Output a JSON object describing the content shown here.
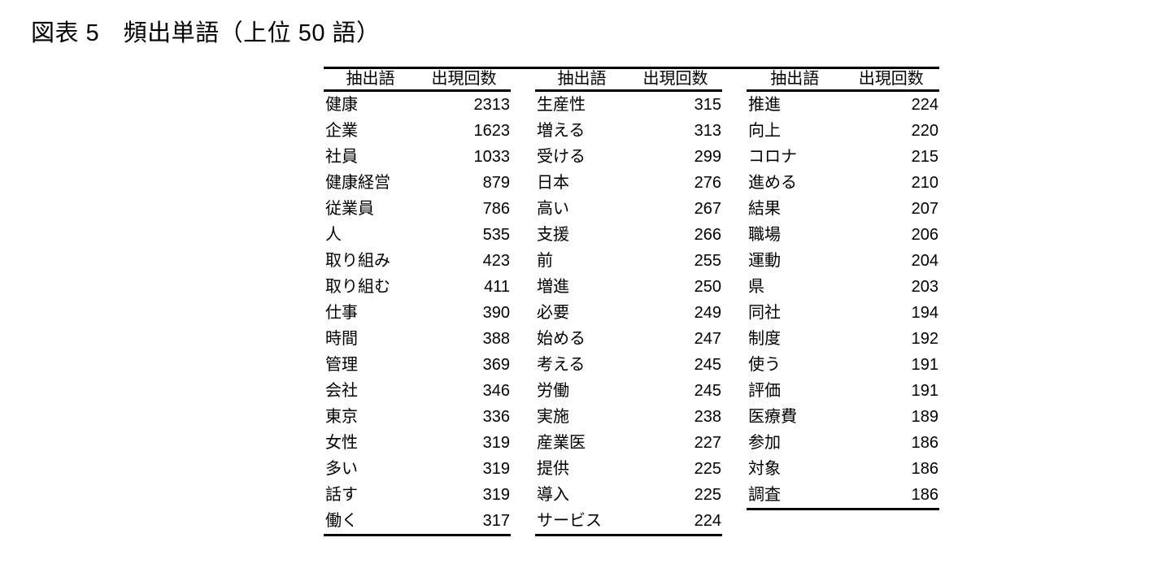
{
  "title": "図表 5　頻出単語（上位 50 語）",
  "colors": {
    "text": "#000000",
    "background": "#ffffff",
    "rule": "#000000"
  },
  "tables": [
    {
      "headers": [
        "抽出語",
        "出現回数"
      ],
      "rows": [
        [
          "健康",
          "2313"
        ],
        [
          "企業",
          "1623"
        ],
        [
          "社員",
          "1033"
        ],
        [
          "健康経営",
          "879"
        ],
        [
          "従業員",
          "786"
        ],
        [
          "人",
          "535"
        ],
        [
          "取り組み",
          "423"
        ],
        [
          "取り組む",
          "411"
        ],
        [
          "仕事",
          "390"
        ],
        [
          "時間",
          "388"
        ],
        [
          "管理",
          "369"
        ],
        [
          "会社",
          "346"
        ],
        [
          "東京",
          "336"
        ],
        [
          "女性",
          "319"
        ],
        [
          "多い",
          "319"
        ],
        [
          "話す",
          "319"
        ],
        [
          "働く",
          "317"
        ]
      ]
    },
    {
      "headers": [
        "抽出語",
        "出現回数"
      ],
      "rows": [
        [
          "生産性",
          "315"
        ],
        [
          "増える",
          "313"
        ],
        [
          "受ける",
          "299"
        ],
        [
          "日本",
          "276"
        ],
        [
          "高い",
          "267"
        ],
        [
          "支援",
          "266"
        ],
        [
          "前",
          "255"
        ],
        [
          "増進",
          "250"
        ],
        [
          "必要",
          "249"
        ],
        [
          "始める",
          "247"
        ],
        [
          "考える",
          "245"
        ],
        [
          "労働",
          "245"
        ],
        [
          "実施",
          "238"
        ],
        [
          "産業医",
          "227"
        ],
        [
          "提供",
          "225"
        ],
        [
          "導入",
          "225"
        ],
        [
          "サービス",
          "224"
        ]
      ]
    },
    {
      "headers": [
        "抽出語",
        "出現回数"
      ],
      "rows": [
        [
          "推進",
          "224"
        ],
        [
          "向上",
          "220"
        ],
        [
          "コロナ",
          "215"
        ],
        [
          "進める",
          "210"
        ],
        [
          "結果",
          "207"
        ],
        [
          "職場",
          "206"
        ],
        [
          "運動",
          "204"
        ],
        [
          "県",
          "203"
        ],
        [
          "同社",
          "194"
        ],
        [
          "制度",
          "192"
        ],
        [
          "使う",
          "191"
        ],
        [
          "評価",
          "191"
        ],
        [
          "医療費",
          "189"
        ],
        [
          "参加",
          "186"
        ],
        [
          "対象",
          "186"
        ],
        [
          "調査",
          "186"
        ]
      ]
    }
  ]
}
